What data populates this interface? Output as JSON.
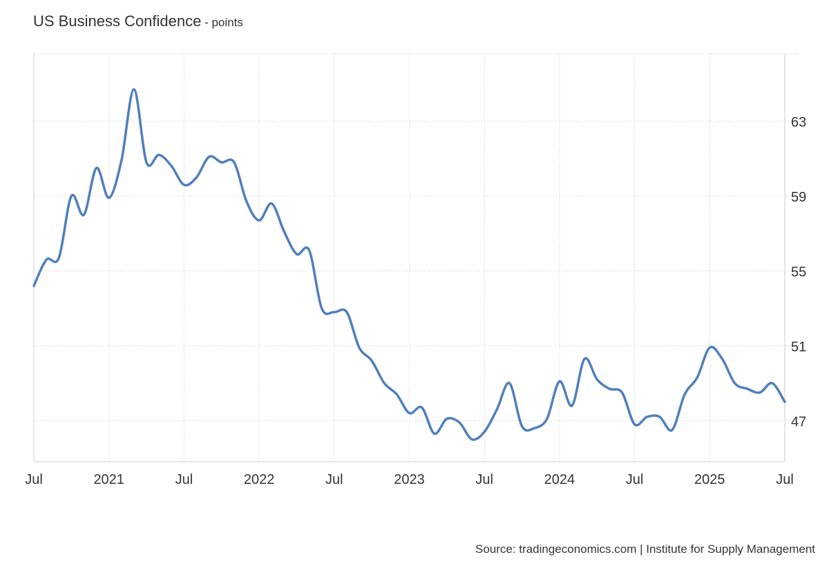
{
  "chart_data": {
    "type": "line",
    "title": "US Business Confidence",
    "unit": "points",
    "source": "Source: tradingeconomics.com | Institute for Supply Management",
    "x_ticks": [
      "Jul",
      "2021",
      "Jul",
      "2022",
      "Jul",
      "2023",
      "Jul",
      "2024",
      "Jul",
      "2025",
      "Jul"
    ],
    "y_ticks": [
      47,
      51,
      55,
      59,
      63
    ],
    "xlim": [
      "2020-07",
      "2025-07"
    ],
    "ylim": [
      44.8,
      66.6
    ],
    "grid": true,
    "series": [
      {
        "color": "#4f7fbd",
        "x": [
          "2020-07",
          "2020-08",
          "2020-09",
          "2020-10",
          "2020-11",
          "2020-12",
          "2021-01",
          "2021-02",
          "2021-03",
          "2021-04",
          "2021-05",
          "2021-06",
          "2021-07",
          "2021-08",
          "2021-09",
          "2021-10",
          "2021-11",
          "2021-12",
          "2022-01",
          "2022-02",
          "2022-03",
          "2022-04",
          "2022-05",
          "2022-06",
          "2022-07",
          "2022-08",
          "2022-09",
          "2022-10",
          "2022-11",
          "2022-12",
          "2023-01",
          "2023-02",
          "2023-03",
          "2023-04",
          "2023-05",
          "2023-06",
          "2023-07",
          "2023-08",
          "2023-09",
          "2023-10",
          "2023-11",
          "2023-12",
          "2024-01",
          "2024-02",
          "2024-03",
          "2024-04",
          "2024-05",
          "2024-06",
          "2024-07",
          "2024-08",
          "2024-09",
          "2024-10",
          "2024-11",
          "2024-12",
          "2025-01",
          "2025-02",
          "2025-03",
          "2025-04",
          "2025-05",
          "2025-06",
          "2025-07"
        ],
        "values": [
          54.2,
          55.6,
          55.7,
          59.0,
          58.0,
          60.5,
          58.9,
          60.9,
          64.7,
          60.8,
          61.2,
          60.6,
          59.6,
          60.0,
          61.1,
          60.8,
          60.8,
          58.7,
          57.7,
          58.6,
          57.1,
          55.9,
          56.1,
          53.0,
          52.8,
          52.8,
          50.9,
          50.2,
          49.0,
          48.4,
          47.4,
          47.7,
          46.3,
          47.1,
          46.9,
          46.0,
          46.4,
          47.6,
          49.0,
          46.7,
          46.6,
          47.1,
          49.1,
          47.8,
          50.3,
          49.2,
          48.7,
          48.5,
          46.8,
          47.2,
          47.2,
          46.5,
          48.4,
          49.3,
          50.9,
          50.3,
          49.0,
          48.7,
          48.5,
          49.0,
          48.0
        ]
      }
    ]
  }
}
